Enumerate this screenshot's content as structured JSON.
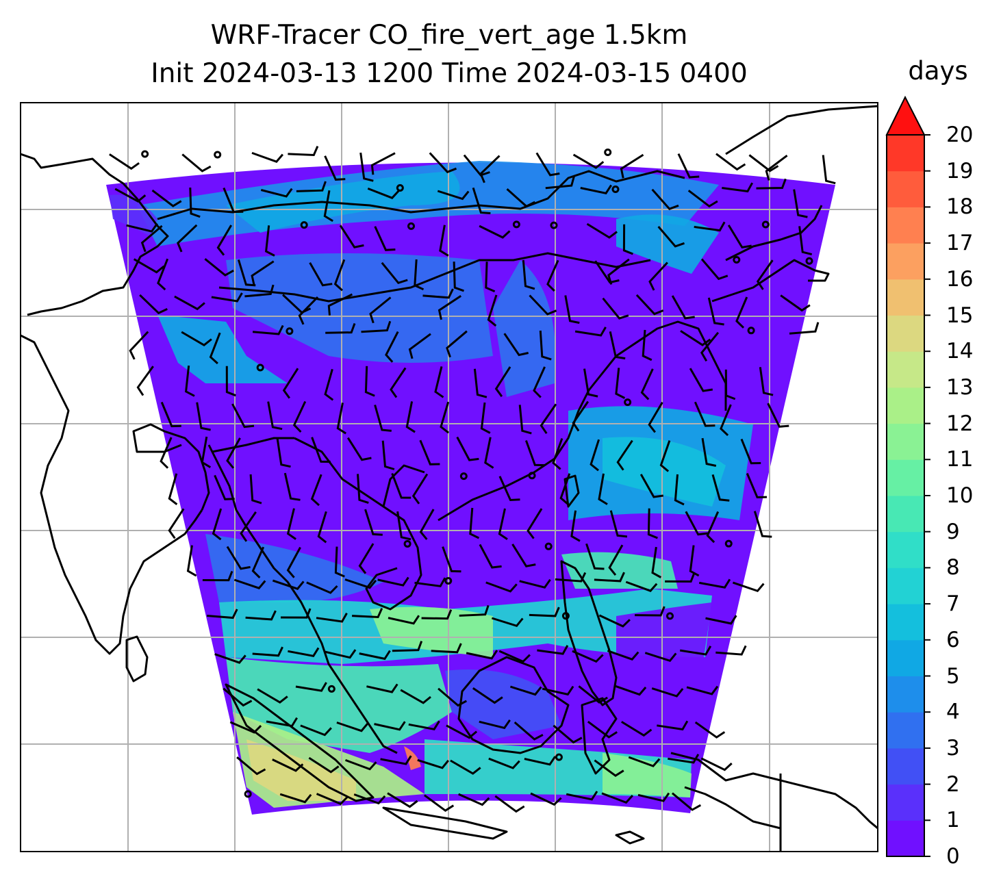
{
  "title": {
    "line1": "WRF-Tracer CO_fire_vert_age 1.5km",
    "line2": "Init 2024-03-13 1200 Time 2024-03-15 0400"
  },
  "colorbar": {
    "label": "days",
    "min": 0,
    "max": 20,
    "ticks": [
      "0",
      "1",
      "2",
      "3",
      "4",
      "5",
      "6",
      "7",
      "8",
      "9",
      "10",
      "11",
      "12",
      "13",
      "14",
      "15",
      "16",
      "17",
      "18",
      "19",
      "20"
    ],
    "extend": "max",
    "colors": [
      "#7010ff",
      "#5a30fb",
      "#4150f5",
      "#3070f0",
      "#1e8eeb",
      "#10a8e4",
      "#14bfdd",
      "#22d2d4",
      "#30dec8",
      "#48e8b4",
      "#66f0a4",
      "#8af294",
      "#aaf088",
      "#c6e888",
      "#dcd880",
      "#f0c070",
      "#fca060",
      "#ff8050",
      "#ff5c3c",
      "#ff3828",
      "#ff1010"
    ],
    "extend_color": "#ff1010"
  },
  "map": {
    "gridlines": true,
    "coastlines": true,
    "field_name": "CO_fire_vert_age",
    "wind_symbols": "barbs"
  }
}
